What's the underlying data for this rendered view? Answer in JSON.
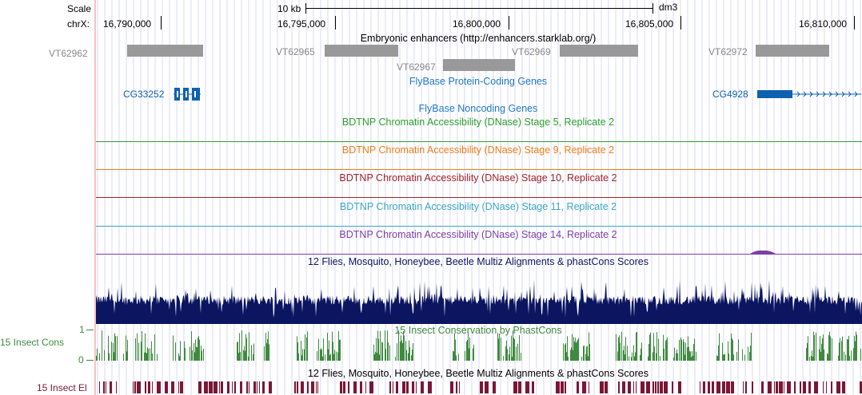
{
  "ruler": {
    "scale_label": "Scale",
    "scale_value": "10 kb",
    "assembly": "dm3",
    "chrom_label": "chrX:",
    "ticks": [
      "16,790,000",
      "16,795,000",
      "16,800,000",
      "16,805,000",
      "16,810,000"
    ]
  },
  "tracks": {
    "enhancers": {
      "title": "Embryonic enhancers (http://enhancers.starklab.org/)",
      "items": [
        "VT62962",
        "VT62965",
        "VT62967",
        "VT62969",
        "VT62972"
      ]
    },
    "coding_genes": {
      "title": "FlyBase Protein-Coding Genes",
      "items": [
        "CG33252",
        "CG4928"
      ]
    },
    "noncoding_genes": {
      "title": "FlyBase Noncoding Genes"
    },
    "dnase": [
      {
        "title": "BDTNP Chromatin Accessibility (DNase) Stage 5, Replicate 2",
        "color": "#2ca02c"
      },
      {
        "title": "BDTNP Chromatin Accessibility (DNase) Stage 9, Replicate 2",
        "color": "#ef7d1a"
      },
      {
        "title": "BDTNP Chromatin Accessibility (DNase) Stage 10, Replicate 2",
        "color": "#a0222a"
      },
      {
        "title": "BDTNP Chromatin Accessibility (DNase) Stage 11, Replicate 2",
        "color": "#3aa6c8"
      },
      {
        "title": "BDTNP Chromatin Accessibility (DNase) Stage 14, Replicate 2",
        "color": "#7b3fa8"
      }
    ],
    "multiz": {
      "title": "12 Flies, Mosquito, Honeybee, Beetle Multiz Alignments & phastCons Scores",
      "color": "#0b1560"
    },
    "cons": {
      "title": "15 Insect Conservation by PhastCons",
      "side_label": "15 Insect Cons",
      "y_max": "1",
      "y_min": "0",
      "color": "#3f8a3f"
    },
    "elements": {
      "title": "12 Flies, Mosquito, Honeybee, Beetle Multiz Alignments & phastCons Scores",
      "side_label": "15 Insect El",
      "color": "#7a1733"
    }
  },
  "colors": {
    "coding_gene": "#0d61b0",
    "enhancer": "#999999",
    "label_blue": "#1f77c8"
  }
}
